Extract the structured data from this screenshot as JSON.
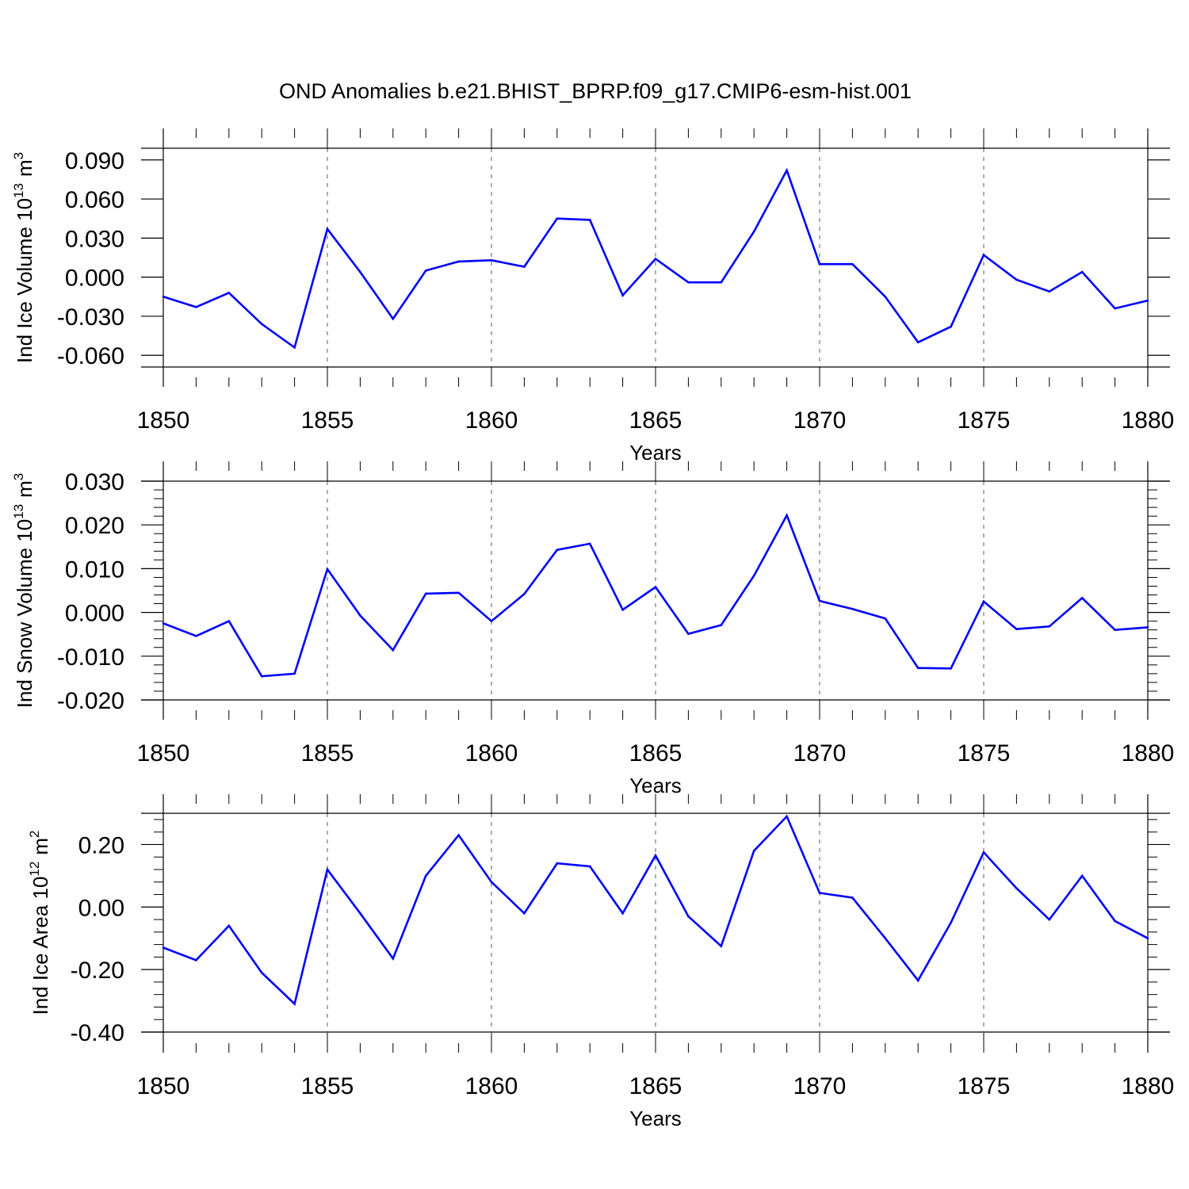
{
  "figure": {
    "title": "OND Anomalies b.e21.BHIST_BPRP.f09_g17.CMIP6-esm-hist.001",
    "line_color": "#0000ff"
  },
  "chart_data": [
    {
      "type": "line",
      "ylabel": "Ind Ice Volume 10",
      "ylabel_exp": "13",
      "ylabel_unit": "m",
      "ylabel_unit_exp": "3",
      "xlabel": "Years",
      "xlim": [
        1850,
        1880
      ],
      "ylim": [
        -0.069,
        0.099
      ],
      "xticks": [
        "1850",
        "1855",
        "1860",
        "1865",
        "1870",
        "1875",
        "1880"
      ],
      "yticks": [
        "0.090",
        "0.060",
        "0.030",
        "0.000",
        "-0.030",
        "-0.060"
      ],
      "ytick_values": [
        0.09,
        0.06,
        0.03,
        0.0,
        -0.03,
        -0.06
      ],
      "grid": "dashed vertical at major x ticks",
      "x": [
        1850,
        1851,
        1852,
        1853,
        1854,
        1855,
        1856,
        1857,
        1858,
        1859,
        1860,
        1861,
        1862,
        1863,
        1864,
        1865,
        1866,
        1867,
        1868,
        1869,
        1870,
        1871,
        1872,
        1873,
        1874,
        1875,
        1876,
        1877,
        1878,
        1879,
        1880
      ],
      "series": [
        {
          "values": [
            -0.015,
            -0.023,
            -0.012,
            -0.036,
            -0.054,
            0.037,
            0.004,
            -0.032,
            0.005,
            0.012,
            0.013,
            0.008,
            0.045,
            0.044,
            -0.014,
            0.014,
            -0.004,
            -0.004,
            0.035,
            0.082,
            0.01,
            0.01,
            -0.015,
            -0.05,
            -0.038,
            0.017,
            -0.002,
            -0.011,
            0.004,
            -0.024,
            -0.018
          ]
        }
      ]
    },
    {
      "type": "line",
      "ylabel": "Ind Snow Volume 10",
      "ylabel_exp": "13",
      "ylabel_unit": "m",
      "ylabel_unit_exp": "3",
      "xlabel": "Years",
      "xlim": [
        1850,
        1880
      ],
      "ylim": [
        -0.02,
        0.03
      ],
      "xticks": [
        "1850",
        "1855",
        "1860",
        "1865",
        "1870",
        "1875",
        "1880"
      ],
      "yticks": [
        "0.030",
        "0.020",
        "0.010",
        "0.000",
        "-0.010",
        "-0.020"
      ],
      "ytick_values": [
        0.03,
        0.02,
        0.01,
        0.0,
        -0.01,
        -0.02
      ],
      "grid": "dashed vertical at major x ticks",
      "x": [
        1850,
        1851,
        1852,
        1853,
        1854,
        1855,
        1856,
        1857,
        1858,
        1859,
        1860,
        1861,
        1862,
        1863,
        1864,
        1865,
        1866,
        1867,
        1868,
        1869,
        1870,
        1871,
        1872,
        1873,
        1874,
        1875,
        1876,
        1877,
        1878,
        1879,
        1880
      ],
      "series": [
        {
          "values": [
            -0.0025,
            -0.0054,
            -0.002,
            -0.0146,
            -0.014,
            0.0099,
            -0.0007,
            -0.0086,
            0.0043,
            0.0045,
            -0.002,
            0.0042,
            0.0143,
            0.0157,
            0.0006,
            0.0058,
            -0.0049,
            -0.0029,
            0.0084,
            0.0222,
            0.0026,
            0.0008,
            -0.0014,
            -0.0127,
            -0.0128,
            0.0025,
            -0.0038,
            -0.0032,
            0.0033,
            -0.004,
            -0.0034
          ]
        }
      ]
    },
    {
      "type": "line",
      "ylabel": "Ind Ice Area 10",
      "ylabel_exp": "12",
      "ylabel_unit": "m",
      "ylabel_unit_exp": "2",
      "xlabel": "Years",
      "xlim": [
        1850,
        1880
      ],
      "ylim": [
        -0.4,
        0.3
      ],
      "xticks": [
        "1850",
        "1855",
        "1860",
        "1865",
        "1870",
        "1875",
        "1880"
      ],
      "yticks": [
        "0.20",
        "0.00",
        "-0.20",
        "-0.40"
      ],
      "ytick_values": [
        0.2,
        0.0,
        -0.2,
        -0.4
      ],
      "grid": "dashed vertical at major x ticks",
      "x": [
        1850,
        1851,
        1852,
        1853,
        1854,
        1855,
        1856,
        1857,
        1858,
        1859,
        1860,
        1861,
        1862,
        1863,
        1864,
        1865,
        1866,
        1867,
        1868,
        1869,
        1870,
        1871,
        1872,
        1873,
        1874,
        1875,
        1876,
        1877,
        1878,
        1879,
        1880
      ],
      "series": [
        {
          "values": [
            -0.13,
            -0.17,
            -0.06,
            -0.21,
            -0.31,
            0.12,
            -0.02,
            -0.165,
            0.1,
            0.23,
            0.08,
            -0.02,
            0.14,
            0.13,
            -0.02,
            0.165,
            -0.03,
            -0.125,
            0.18,
            0.29,
            0.045,
            0.03,
            -0.1,
            -0.235,
            -0.05,
            0.175,
            0.06,
            -0.04,
            0.1,
            -0.045,
            -0.1
          ]
        }
      ]
    }
  ]
}
